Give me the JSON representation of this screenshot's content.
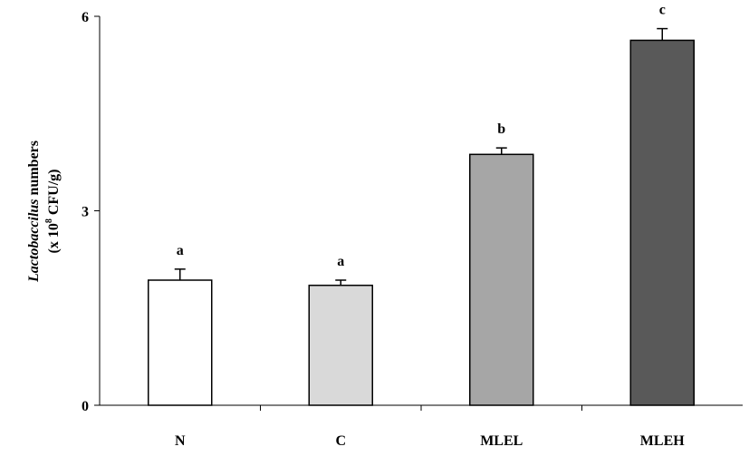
{
  "chart_data": {
    "type": "bar",
    "categories": [
      "N",
      "C",
      "MLEL",
      "MLEH"
    ],
    "values": [
      1.93,
      1.85,
      3.87,
      5.63
    ],
    "errors": [
      0.17,
      0.08,
      0.1,
      0.18
    ],
    "significance": [
      "a",
      "a",
      "b",
      "c"
    ],
    "bar_colors": [
      "#ffffff",
      "#d9d9d9",
      "#a6a6a6",
      "#595959"
    ],
    "ylabel": {
      "line1_italic": "Lactobaccilus",
      "line1_rest": " numbers",
      "line2_prefix": "(x 10",
      "line2_sup": "8",
      "line2_suffix": " CFU/g)"
    },
    "yticks": [
      0,
      3,
      6
    ],
    "ytick_labels": [
      "0",
      "3",
      "6"
    ],
    "ylim": [
      0,
      6
    ],
    "grid": false,
    "legend": "none"
  }
}
